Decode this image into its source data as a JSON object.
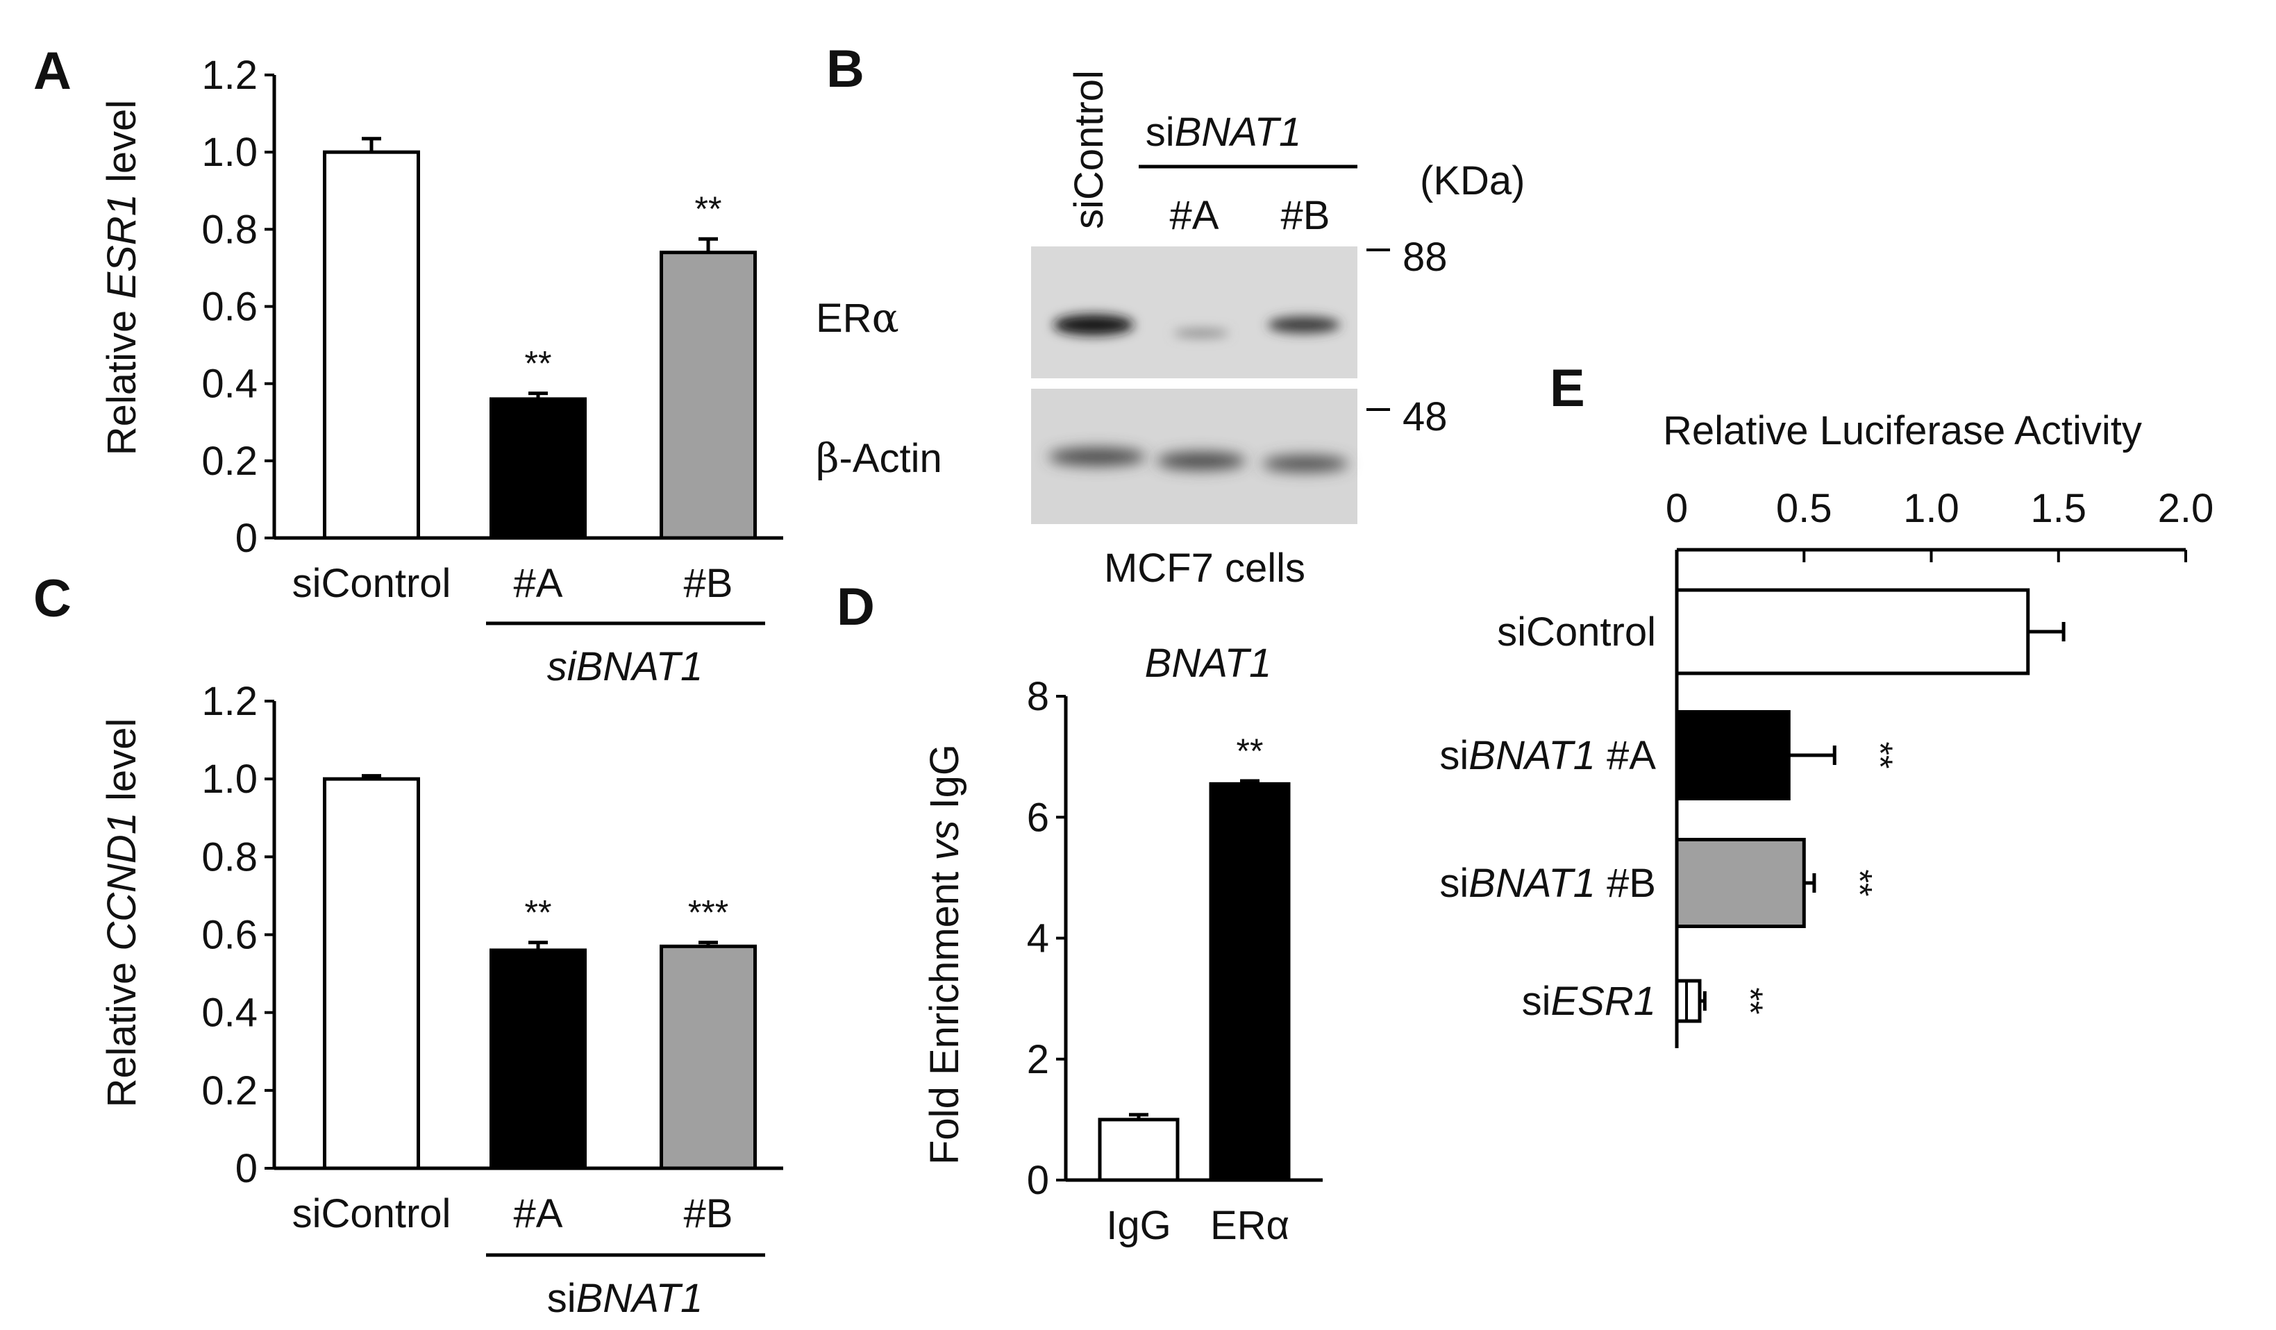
{
  "panels": {
    "A": {
      "letter": "A",
      "ylabel_pre": "Relative ",
      "ylabel_ital": "ESR1",
      "ylabel_post": " level",
      "group_label_pre": "",
      "group_label_ital": "siBNAT1"
    },
    "B": {
      "letter": "B",
      "lane_control": "siControl",
      "group_label_pre": "si",
      "group_label_ital": "BNAT1",
      "lane_a": "#A",
      "lane_b": "#B",
      "kda_label": "(KDa)",
      "marker_88": "88",
      "marker_48": "48",
      "band_era_pre": "ER",
      "band_era_greek": "α",
      "band_actin_greek": "β",
      "band_actin_post": "-Actin",
      "caption": "MCF7 cells"
    },
    "C": {
      "letter": "C",
      "ylabel_pre": "Relative ",
      "ylabel_ital": "CCND1",
      "ylabel_post": " level",
      "group_label_pre": "si",
      "group_label_ital": "BNAT1"
    },
    "D": {
      "letter": "D",
      "title_ital": "BNAT1",
      "ylabel_pre": "Fold Enrichment ",
      "ylabel_ital": "vs",
      "ylabel_post": " IgG"
    },
    "E": {
      "letter": "E",
      "xlabel": "Relative Luciferase Activity",
      "labels": [
        {
          "pre": "siControl",
          "ital": "",
          "post": ""
        },
        {
          "pre": "si",
          "ital": "BNAT1",
          "post": " #A"
        },
        {
          "pre": "si",
          "ital": "BNAT1",
          "post": " #B"
        },
        {
          "pre": "si",
          "ital": "ESR1",
          "post": ""
        }
      ]
    }
  },
  "chart_data": [
    {
      "panel": "A",
      "type": "bar",
      "categories": [
        "siControl",
        "#A",
        "#B"
      ],
      "values": [
        1.0,
        0.36,
        0.74
      ],
      "errors": [
        0.035,
        0.015,
        0.035
      ],
      "significance": [
        "",
        "**",
        "**"
      ],
      "colors": [
        "#ffffff",
        "#000000",
        "#a0a0a0"
      ],
      "ylim": [
        0,
        1.2
      ],
      "yticks": [
        "0",
        "0.2",
        "0.4",
        "0.6",
        "0.8",
        "1.0",
        "1.2"
      ]
    },
    {
      "panel": "C",
      "type": "bar",
      "categories": [
        "siControl",
        "#A",
        "#B"
      ],
      "values": [
        1.0,
        0.56,
        0.57
      ],
      "errors": [
        0.008,
        0.02,
        0.01
      ],
      "significance": [
        "",
        "**",
        "***"
      ],
      "colors": [
        "#ffffff",
        "#000000",
        "#a0a0a0"
      ],
      "ylim": [
        0,
        1.2
      ],
      "yticks": [
        "0",
        "0.2",
        "0.4",
        "0.6",
        "0.8",
        "1.0",
        "1.2"
      ]
    },
    {
      "panel": "D",
      "type": "bar",
      "categories": [
        "IgG",
        "ERα"
      ],
      "values": [
        1.0,
        6.55
      ],
      "errors": [
        0.08,
        0.05
      ],
      "significance": [
        "",
        "**"
      ],
      "colors": [
        "#ffffff",
        "#000000"
      ],
      "ylim": [
        0,
        8
      ],
      "yticks": [
        "0",
        "2",
        "4",
        "6",
        "8"
      ]
    },
    {
      "panel": "E",
      "type": "bar",
      "orientation": "horizontal",
      "categories": [
        "siControl",
        "siBNAT1 #A",
        "siBNAT1 #B",
        "siESR1"
      ],
      "values": [
        1.38,
        0.44,
        0.5,
        0.09
      ],
      "errors": [
        0.14,
        0.18,
        0.04,
        0.02
      ],
      "significance": [
        "",
        "**",
        "**",
        "**"
      ],
      "colors": [
        "#ffffff",
        "#000000",
        "#a0a0a0",
        "#ffffff"
      ],
      "xlim": [
        0,
        2.0
      ],
      "xticks": [
        "0",
        "0.5",
        "1.0",
        "1.5",
        "2.0"
      ]
    }
  ]
}
